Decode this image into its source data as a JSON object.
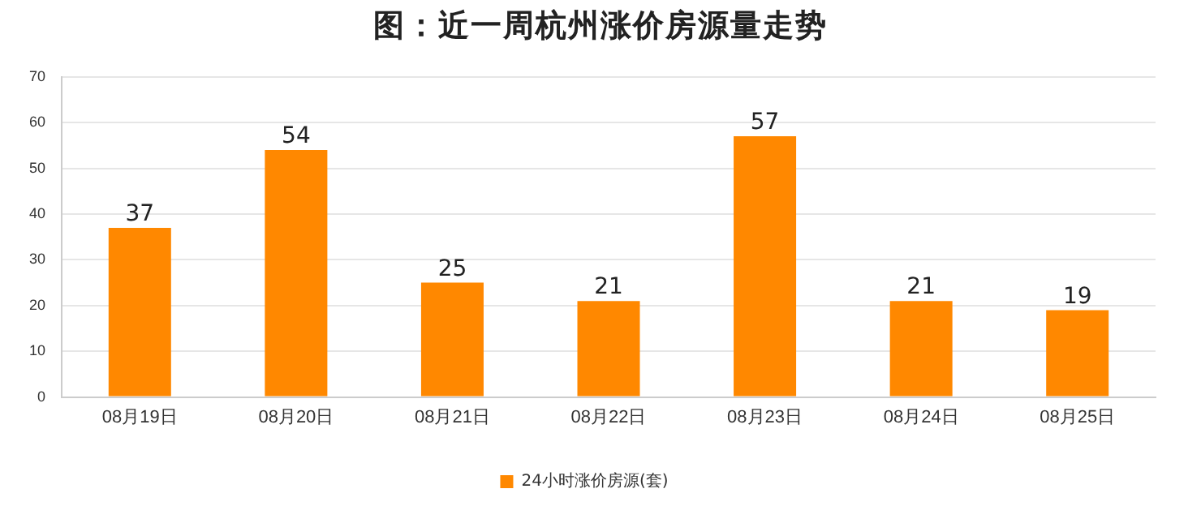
{
  "chart_data": {
    "type": "bar",
    "title": "图：近一周杭州涨价房源量走势",
    "categories": [
      "08月19日",
      "08月20日",
      "08月21日",
      "08月22日",
      "08月23日",
      "08月24日",
      "08月25日"
    ],
    "series": [
      {
        "name": "24小时涨价房源(套)",
        "color": "#ff8800",
        "values": [
          37,
          54,
          25,
          21,
          57,
          21,
          19
        ]
      }
    ],
    "ylim": [
      0,
      70
    ],
    "yticks": [
      0,
      10,
      20,
      30,
      40,
      50,
      60,
      70
    ],
    "grid": "y",
    "legend": "bottom",
    "data_labels": true
  }
}
